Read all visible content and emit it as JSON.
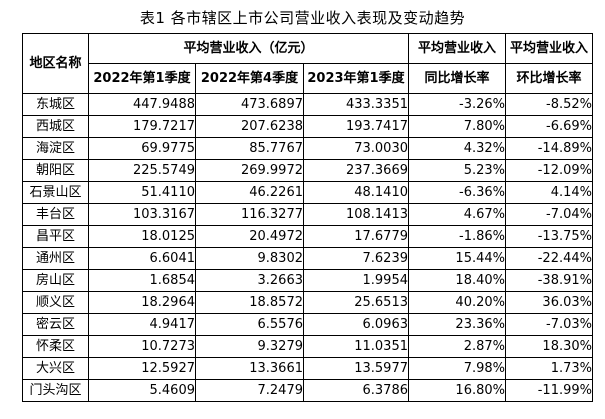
{
  "title": "表1 各市辖区上市公司营业收入表现及变动趋势",
  "colors": {
    "background": "#ffffff",
    "text": "#000000",
    "grid_border": "#000000",
    "dashed_divider": "#b8b8b8"
  },
  "table": {
    "header": {
      "region": "地区名称",
      "revenue_group": "平均营业收入（亿元）",
      "quarters": [
        "2022年第1季度",
        "2022年第4季度",
        "2023年第1季度"
      ],
      "yoy_top": "平均营业收入",
      "yoy_bottom": "同比增长率",
      "qoq_top": "平均营业收入",
      "qoq_bottom": "环比增长率"
    },
    "rows": [
      {
        "region": "东城区",
        "q1_2022": "447.9488",
        "q4_2022": "473.6897",
        "q1_2023": "433.3351",
        "yoy": "-3.26%",
        "qoq": "-8.52%"
      },
      {
        "region": "西城区",
        "q1_2022": "179.7217",
        "q4_2022": "207.6238",
        "q1_2023": "193.7417",
        "yoy": "7.80%",
        "qoq": "-6.69%"
      },
      {
        "region": "海淀区",
        "q1_2022": "69.9775",
        "q4_2022": "85.7767",
        "q1_2023": "73.0030",
        "yoy": "4.32%",
        "qoq": "-14.89%"
      },
      {
        "region": "朝阳区",
        "q1_2022": "225.5749",
        "q4_2022": "269.9972",
        "q1_2023": "237.3669",
        "yoy": "5.23%",
        "qoq": "-12.09%"
      },
      {
        "region": "石景山区",
        "q1_2022": "51.4110",
        "q4_2022": "46.2261",
        "q1_2023": "48.1410",
        "yoy": "-6.36%",
        "qoq": "4.14%"
      },
      {
        "region": "丰台区",
        "q1_2022": "103.3167",
        "q4_2022": "116.3277",
        "q1_2023": "108.1413",
        "yoy": "4.67%",
        "qoq": "-7.04%"
      },
      {
        "region": "昌平区",
        "q1_2022": "18.0125",
        "q4_2022": "20.4972",
        "q1_2023": "17.6779",
        "yoy": "-1.86%",
        "qoq": "-13.75%"
      },
      {
        "region": "通州区",
        "q1_2022": "6.6041",
        "q4_2022": "9.8302",
        "q1_2023": "7.6239",
        "yoy": "15.44%",
        "qoq": "-22.44%"
      },
      {
        "region": "房山区",
        "q1_2022": "1.6854",
        "q4_2022": "3.2663",
        "q1_2023": "1.9954",
        "yoy": "18.40%",
        "qoq": "-38.91%"
      },
      {
        "region": "顺义区",
        "q1_2022": "18.2964",
        "q4_2022": "18.8572",
        "q1_2023": "25.6513",
        "yoy": "40.20%",
        "qoq": "36.03%"
      },
      {
        "region": "密云区",
        "q1_2022": "4.9417",
        "q4_2022": "6.5576",
        "q1_2023": "6.0963",
        "yoy": "23.36%",
        "qoq": "-7.03%"
      },
      {
        "region": "怀柔区",
        "q1_2022": "10.7273",
        "q4_2022": "9.3279",
        "q1_2023": "11.0351",
        "yoy": "2.87%",
        "qoq": "18.30%"
      },
      {
        "region": "大兴区",
        "q1_2022": "12.5927",
        "q4_2022": "13.3661",
        "q1_2023": "13.5977",
        "yoy": "7.98%",
        "qoq": "1.73%"
      },
      {
        "region": "门头沟区",
        "q1_2022": "5.4609",
        "q4_2022": "7.2479",
        "q1_2023": "6.3786",
        "yoy": "16.80%",
        "qoq": "-11.99%"
      }
    ]
  }
}
